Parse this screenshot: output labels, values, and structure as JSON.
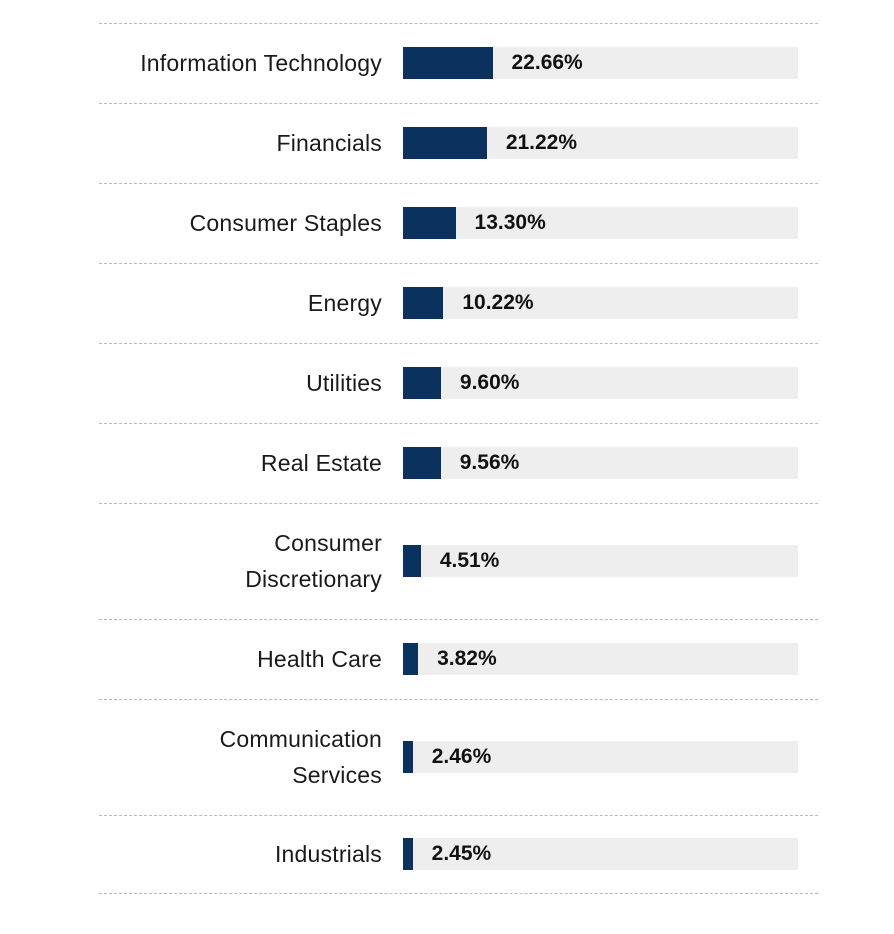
{
  "chart_data": {
    "type": "bar",
    "orientation": "horizontal",
    "title": "",
    "xlabel": "",
    "ylabel": "",
    "bar_color": "#0b315e",
    "track_color": "#eeeeee",
    "xlim": [
      0,
      100
    ],
    "categories": [
      "Information Technology",
      "Financials",
      "Consumer Staples",
      "Energy",
      "Utilities",
      "Real Estate",
      "Consumer Discretionary",
      "Health Care",
      "Communication Services",
      "Industrials"
    ],
    "values": [
      22.66,
      21.22,
      13.3,
      10.22,
      9.6,
      9.56,
      4.51,
      3.82,
      2.46,
      2.45
    ],
    "value_labels": [
      "22.66%",
      "21.22%",
      "13.30%",
      "10.22%",
      "9.60%",
      "9.56%",
      "4.51%",
      "3.82%",
      "2.46%",
      "2.45%"
    ]
  }
}
